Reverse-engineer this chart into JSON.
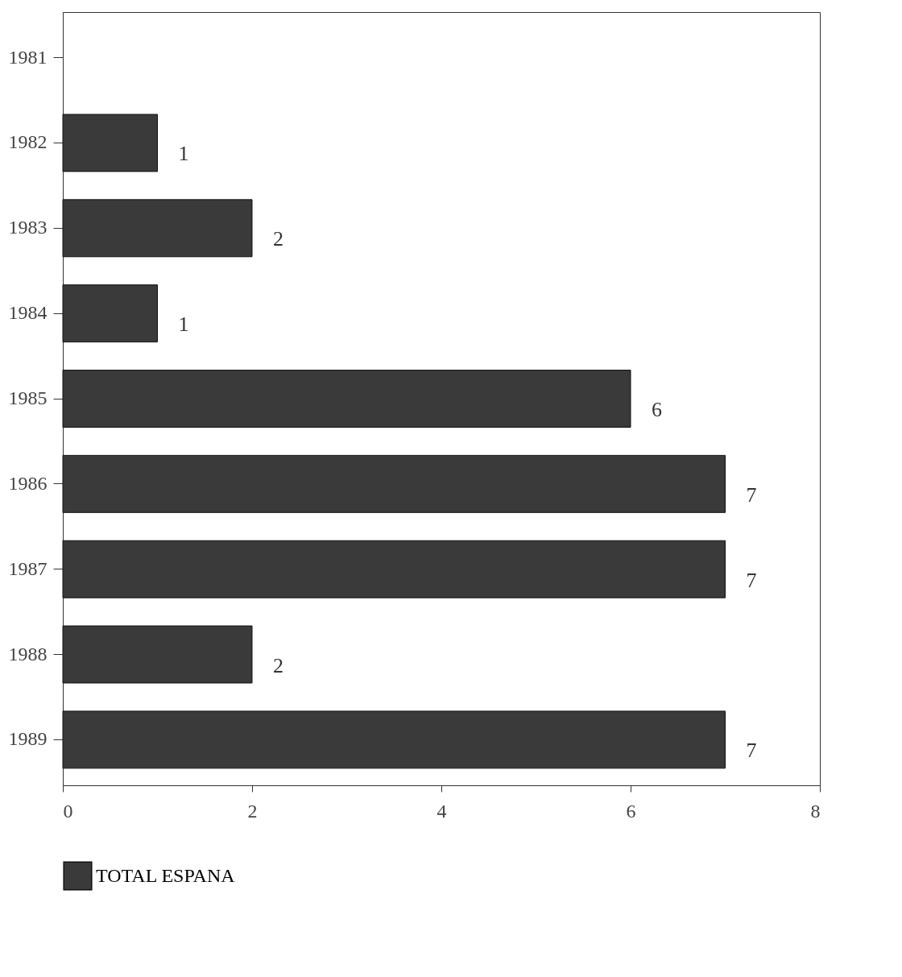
{
  "chart_data": {
    "type": "bar",
    "orientation": "horizontal",
    "categories": [
      "1981",
      "1982",
      "1983",
      "1984",
      "1985",
      "1986",
      "1987",
      "1988",
      "1989"
    ],
    "series": [
      {
        "name": "TOTAL ESPANA",
        "color": "#3a3a3a",
        "values": [
          null,
          1,
          2,
          1,
          6,
          7,
          7,
          2,
          7
        ]
      }
    ],
    "xlim": [
      0,
      8
    ],
    "xticks": [
      0,
      2,
      4,
      6,
      8
    ],
    "data_labels": true,
    "grid": false,
    "legend": "bottom"
  }
}
